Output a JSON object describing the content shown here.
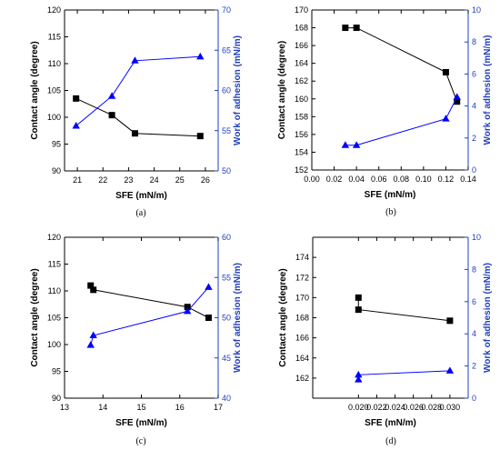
{
  "colors": {
    "left_axis": "#000000",
    "right_axis": "#1f3fbf",
    "square_series": "#000000",
    "triangle_series": "#0000ff"
  },
  "chart_data": [
    {
      "type": "line",
      "panel_label": "(a)",
      "xlabel": "SFE (mN/m)",
      "ylabel": "Contact angle (degree)",
      "y2label": "Work of adhesion (mN/m)",
      "xlim": [
        20.5,
        26.5
      ],
      "ylim": [
        90,
        120
      ],
      "y2lim": [
        50,
        70
      ],
      "xticks": [
        "21",
        "22",
        "23",
        "24",
        "25",
        "26"
      ],
      "yticks": [
        "90",
        "95",
        "100",
        "105",
        "110",
        "115",
        "120"
      ],
      "y2ticks": [
        "50",
        "55",
        "60",
        "65",
        "70"
      ],
      "grid": false,
      "series": [
        {
          "marker": "square",
          "axis": "left",
          "x": [
            20.95,
            22.35,
            23.25,
            25.8
          ],
          "y": [
            103.5,
            100.4,
            97.0,
            96.5
          ]
        },
        {
          "marker": "triangle",
          "axis": "right",
          "x": [
            20.95,
            22.35,
            23.25,
            25.8
          ],
          "y": [
            55.6,
            59.3,
            63.7,
            64.2
          ]
        }
      ]
    },
    {
      "type": "line",
      "panel_label": "(b)",
      "xlabel": "SFE (mN/m)",
      "ylabel": "Contact angle (degree)",
      "y2label": "Work of adhesion (mN/m)",
      "xlim": [
        0.0,
        0.14
      ],
      "ylim": [
        152,
        170
      ],
      "y2lim": [
        0,
        10
      ],
      "xticks": [
        "0.00",
        "0.02",
        "0.04",
        "0.06",
        "0.08",
        "0.10",
        "0.12",
        "0.14"
      ],
      "yticks": [
        "152",
        "154",
        "156",
        "158",
        "160",
        "162",
        "164",
        "166",
        "168",
        "170"
      ],
      "y2ticks": [
        "0",
        "2",
        "4",
        "6",
        "8",
        "10"
      ],
      "grid": false,
      "series": [
        {
          "marker": "square",
          "axis": "left",
          "x": [
            0.03,
            0.04,
            0.12,
            0.13
          ],
          "y": [
            168.0,
            168.0,
            163.0,
            159.7
          ]
        },
        {
          "marker": "triangle",
          "axis": "right",
          "x": [
            0.03,
            0.04,
            0.12,
            0.13
          ],
          "y": [
            1.55,
            1.55,
            3.2,
            4.55
          ]
        }
      ]
    },
    {
      "type": "line",
      "panel_label": "(c)",
      "xlabel": "SFE (mN/m)",
      "ylabel": "Contact angle (degree)",
      "y2label": "Work of adhesion (mN/m)",
      "xlim": [
        13,
        17
      ],
      "ylim": [
        90,
        120
      ],
      "y2lim": [
        40,
        60
      ],
      "xticks": [
        "13",
        "14",
        "15",
        "16",
        "17"
      ],
      "yticks": [
        "90",
        "95",
        "100",
        "105",
        "110",
        "115",
        "120"
      ],
      "y2ticks": [
        "40",
        "45",
        "50",
        "55",
        "60"
      ],
      "grid": false,
      "series": [
        {
          "marker": "square",
          "axis": "left",
          "x": [
            13.68,
            13.75,
            16.2,
            16.75
          ],
          "y": [
            111.0,
            110.2,
            107.0,
            105.0
          ]
        },
        {
          "marker": "triangle",
          "axis": "right",
          "x": [
            13.68,
            13.75,
            16.2,
            16.75
          ],
          "y": [
            46.6,
            47.8,
            50.8,
            53.8
          ]
        }
      ]
    },
    {
      "type": "line",
      "panel_label": "(d)",
      "xlabel": "SFE (mN/m)",
      "ylabel": "Contact angle (degree)",
      "y2label": "Work of adhesion (mN/m)",
      "xlim": [
        0.015,
        0.032
      ],
      "ylim": [
        160,
        176
      ],
      "y2lim": [
        0,
        10
      ],
      "xticks": [
        "0.020",
        "0.022",
        "0.024",
        "0.026",
        "0.028",
        "0.030"
      ],
      "yticks": [
        "162",
        "164",
        "166",
        "168",
        "170",
        "172",
        "174"
      ],
      "y2ticks": [
        "0",
        "2",
        "4",
        "6",
        "8",
        "10"
      ],
      "grid": false,
      "series": [
        {
          "marker": "square",
          "axis": "left",
          "x": [
            0.02,
            0.02,
            0.03
          ],
          "y": [
            170.0,
            168.8,
            167.7
          ]
        },
        {
          "marker": "triangle",
          "axis": "right",
          "x": [
            0.02,
            0.02,
            0.03
          ],
          "y": [
            1.15,
            1.45,
            1.7
          ]
        }
      ]
    }
  ]
}
